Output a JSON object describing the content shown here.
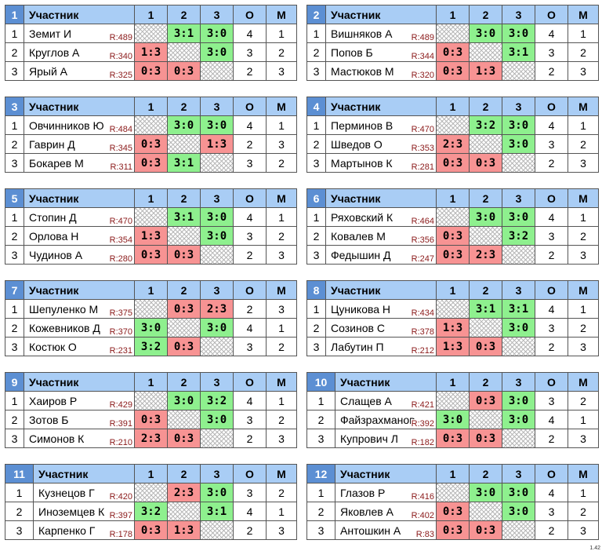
{
  "header": {
    "participant": "Участник",
    "cols": [
      "1",
      "2",
      "3"
    ],
    "o": "О",
    "m": "М"
  },
  "version": "1.42",
  "groups": [
    {
      "num": "1",
      "rows": [
        {
          "place": "1",
          "name": "Земит И",
          "rating": "R:489",
          "results": [
            "",
            "3:1",
            "3:0"
          ],
          "o": "4",
          "m": "1"
        },
        {
          "place": "2",
          "name": "Круглов А",
          "rating": "R:340",
          "results": [
            "1:3",
            "",
            "3:0"
          ],
          "o": "3",
          "m": "2"
        },
        {
          "place": "3",
          "name": "Ярый А",
          "rating": "R:325",
          "results": [
            "0:3",
            "0:3",
            ""
          ],
          "o": "2",
          "m": "3"
        }
      ]
    },
    {
      "num": "2",
      "rows": [
        {
          "place": "1",
          "name": "Вишняков А",
          "rating": "R:489",
          "results": [
            "",
            "3:0",
            "3:0"
          ],
          "o": "4",
          "m": "1"
        },
        {
          "place": "2",
          "name": "Попов Б",
          "rating": "R:344",
          "results": [
            "0:3",
            "",
            "3:1"
          ],
          "o": "3",
          "m": "2"
        },
        {
          "place": "3",
          "name": "Мастюков М",
          "rating": "R:320",
          "results": [
            "0:3",
            "1:3",
            ""
          ],
          "o": "2",
          "m": "3"
        }
      ]
    },
    {
      "num": "3",
      "rows": [
        {
          "place": "1",
          "name": "Овчинников Ю",
          "rating": "R:484",
          "results": [
            "",
            "3:0",
            "3:0"
          ],
          "o": "4",
          "m": "1"
        },
        {
          "place": "2",
          "name": "Гаврин Д",
          "rating": "R:345",
          "results": [
            "0:3",
            "",
            "1:3"
          ],
          "o": "2",
          "m": "3"
        },
        {
          "place": "3",
          "name": "Бокарев М",
          "rating": "R:311",
          "results": [
            "0:3",
            "3:1",
            ""
          ],
          "o": "3",
          "m": "2"
        }
      ]
    },
    {
      "num": "4",
      "rows": [
        {
          "place": "1",
          "name": "Перминов В",
          "rating": "R:470",
          "results": [
            "",
            "3:2",
            "3:0"
          ],
          "o": "4",
          "m": "1"
        },
        {
          "place": "2",
          "name": "Шведов О",
          "rating": "R:353",
          "results": [
            "2:3",
            "",
            "3:0"
          ],
          "o": "3",
          "m": "2"
        },
        {
          "place": "3",
          "name": "Мартынов К",
          "rating": "R:281",
          "results": [
            "0:3",
            "0:3",
            ""
          ],
          "o": "2",
          "m": "3"
        }
      ]
    },
    {
      "num": "5",
      "rows": [
        {
          "place": "1",
          "name": "Стопин Д",
          "rating": "R:470",
          "results": [
            "",
            "3:1",
            "3:0"
          ],
          "o": "4",
          "m": "1"
        },
        {
          "place": "2",
          "name": "Орлова Н",
          "rating": "R:354",
          "results": [
            "1:3",
            "",
            "3:0"
          ],
          "o": "3",
          "m": "2"
        },
        {
          "place": "3",
          "name": "Чудинов А",
          "rating": "R:280",
          "results": [
            "0:3",
            "0:3",
            ""
          ],
          "o": "2",
          "m": "3"
        }
      ]
    },
    {
      "num": "6",
      "rows": [
        {
          "place": "1",
          "name": "Ряховский К",
          "rating": "R:464",
          "results": [
            "",
            "3:0",
            "3:0"
          ],
          "o": "4",
          "m": "1"
        },
        {
          "place": "2",
          "name": "Ковалев М",
          "rating": "R:356",
          "results": [
            "0:3",
            "",
            "3:2"
          ],
          "o": "3",
          "m": "2"
        },
        {
          "place": "3",
          "name": "Федышин Д",
          "rating": "R:247",
          "results": [
            "0:3",
            "2:3",
            ""
          ],
          "o": "2",
          "m": "3"
        }
      ]
    },
    {
      "num": "7",
      "rows": [
        {
          "place": "1",
          "name": "Шепуленко М",
          "rating": "R:375",
          "results": [
            "",
            "0:3",
            "2:3"
          ],
          "o": "2",
          "m": "3"
        },
        {
          "place": "2",
          "name": "Кожевников Д",
          "rating": "R:370",
          "results": [
            "3:0",
            "",
            "3:0"
          ],
          "o": "4",
          "m": "1"
        },
        {
          "place": "3",
          "name": "Костюк О",
          "rating": "R:231",
          "results": [
            "3:2",
            "0:3",
            ""
          ],
          "o": "3",
          "m": "2"
        }
      ]
    },
    {
      "num": "8",
      "rows": [
        {
          "place": "1",
          "name": "Цуникова Н",
          "rating": "R:434",
          "results": [
            "",
            "3:1",
            "3:1"
          ],
          "o": "4",
          "m": "1"
        },
        {
          "place": "2",
          "name": "Созинов С",
          "rating": "R:378",
          "results": [
            "1:3",
            "",
            "3:0"
          ],
          "o": "3",
          "m": "2"
        },
        {
          "place": "3",
          "name": "Лабутин П",
          "rating": "R:212",
          "results": [
            "1:3",
            "0:3",
            ""
          ],
          "o": "2",
          "m": "3"
        }
      ]
    },
    {
      "num": "9",
      "rows": [
        {
          "place": "1",
          "name": "Хаиров Р",
          "rating": "R:429",
          "results": [
            "",
            "3:0",
            "3:2"
          ],
          "o": "4",
          "m": "1"
        },
        {
          "place": "2",
          "name": "Зотов Б",
          "rating": "R:391",
          "results": [
            "0:3",
            "",
            "3:0"
          ],
          "o": "3",
          "m": "2"
        },
        {
          "place": "3",
          "name": "Симонов К",
          "rating": "R:210",
          "results": [
            "2:3",
            "0:3",
            ""
          ],
          "o": "2",
          "m": "3"
        }
      ]
    },
    {
      "num": "10",
      "rows": [
        {
          "place": "1",
          "name": "Слащев А",
          "rating": "R:421",
          "results": [
            "",
            "0:3",
            "3:0"
          ],
          "o": "3",
          "m": "2"
        },
        {
          "place": "2",
          "name": "Файзрахманов",
          "rating": "R:392",
          "results": [
            "3:0",
            "",
            "3:0"
          ],
          "o": "4",
          "m": "1"
        },
        {
          "place": "3",
          "name": "Купрович Л",
          "rating": "R:182",
          "results": [
            "0:3",
            "0:3",
            ""
          ],
          "o": "2",
          "m": "3"
        }
      ]
    },
    {
      "num": "11",
      "rows": [
        {
          "place": "1",
          "name": "Кузнецов Г",
          "rating": "R:420",
          "results": [
            "",
            "2:3",
            "3:0"
          ],
          "o": "3",
          "m": "2"
        },
        {
          "place": "2",
          "name": "Иноземцев К",
          "rating": "R:397",
          "results": [
            "3:2",
            "",
            "3:1"
          ],
          "o": "4",
          "m": "1"
        },
        {
          "place": "3",
          "name": "Карпенко Г",
          "rating": "R:178",
          "results": [
            "0:3",
            "1:3",
            ""
          ],
          "o": "2",
          "m": "3"
        }
      ]
    },
    {
      "num": "12",
      "rows": [
        {
          "place": "1",
          "name": "Глазов Р",
          "rating": "R:416",
          "results": [
            "",
            "3:0",
            "3:0"
          ],
          "o": "4",
          "m": "1"
        },
        {
          "place": "2",
          "name": "Яковлев А",
          "rating": "R:402",
          "results": [
            "0:3",
            "",
            "3:0"
          ],
          "o": "3",
          "m": "2"
        },
        {
          "place": "3",
          "name": "Антошкин А",
          "rating": "R:83",
          "results": [
            "0:3",
            "0:3",
            ""
          ],
          "o": "2",
          "m": "3"
        }
      ]
    }
  ]
}
